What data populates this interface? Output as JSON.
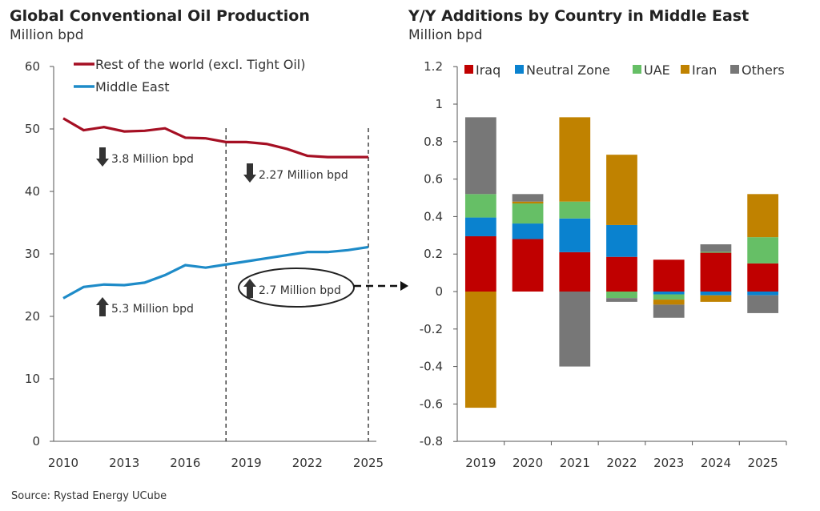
{
  "source": "Source: Rystad Energy UCube",
  "chart_data": [
    {
      "type": "line",
      "title": "Global Conventional Oil Production",
      "subtitle": "Million bpd",
      "ylim": [
        0,
        60
      ],
      "yticks": [
        0,
        10,
        20,
        30,
        40,
        50,
        60
      ],
      "xticks": [
        2010,
        2013,
        2016,
        2019,
        2022,
        2025
      ],
      "x": [
        2010,
        2011,
        2012,
        2013,
        2014,
        2015,
        2016,
        2017,
        2018,
        2019,
        2020,
        2021,
        2022,
        2023,
        2024,
        2025
      ],
      "legend_position": "top-left",
      "series": [
        {
          "name": "Rest of the world (excl. Tight Oil)",
          "color": "#A50F23",
          "values": [
            51.7,
            49.8,
            50.3,
            49.6,
            49.7,
            50.1,
            48.6,
            48.5,
            47.9,
            47.9,
            47.6,
            46.8,
            45.7,
            45.5,
            45.5,
            45.5
          ]
        },
        {
          "name": "Middle East",
          "color": "#1E8BC8",
          "values": [
            22.9,
            24.7,
            25.1,
            25.0,
            25.4,
            26.6,
            28.2,
            27.8,
            28.3,
            28.8,
            29.3,
            29.8,
            30.3,
            30.3,
            30.6,
            31.1
          ]
        }
      ],
      "reference_lines_x": [
        2018,
        2025
      ],
      "annotations": [
        {
          "text": "3.8 Million bpd",
          "direction": "down"
        },
        {
          "text": "2.27 Million bpd",
          "direction": "down"
        },
        {
          "text": "5.3 Million bpd",
          "direction": "up"
        },
        {
          "text": "2.7 Million bpd",
          "direction": "up",
          "circled": true
        }
      ]
    },
    {
      "type": "bar",
      "stacked": true,
      "title": "Y/Y Additions by Country in Middle East",
      "subtitle": "Million bpd",
      "ylim": [
        -0.8,
        1.2
      ],
      "yticks": [
        -0.8,
        -0.6,
        -0.4,
        -0.2,
        0,
        0.2,
        0.4,
        0.6,
        0.8,
        1,
        1.2
      ],
      "ytick_labels": [
        "-0.8",
        "-0.6",
        "-0.4",
        "-0.2",
        "0",
        "0.2",
        "0.4",
        "0.6",
        "0.8",
        "1",
        "1.2"
      ],
      "categories": [
        "2019",
        "2020",
        "2021",
        "2022",
        "2023",
        "2024",
        "2025"
      ],
      "legend_position": "top",
      "series": [
        {
          "name": "Iraq",
          "color": "#C00000",
          "values": [
            0.295,
            0.28,
            0.21,
            0.185,
            0.17,
            0.207,
            0.15
          ]
        },
        {
          "name": "Neutral Zone",
          "color": "#0A82CF",
          "values": [
            0.1,
            0.083,
            0.18,
            0.17,
            -0.015,
            -0.02,
            -0.02
          ]
        },
        {
          "name": "UAE",
          "color": "#66BF66",
          "values": [
            0.125,
            0.107,
            0.09,
            -0.035,
            -0.028,
            0.005,
            0.14
          ]
        },
        {
          "name": "Iran",
          "color": "#C08200",
          "values": [
            -0.62,
            0.01,
            0.45,
            0.375,
            -0.027,
            -0.035,
            0.23
          ]
        },
        {
          "name": "Others",
          "color": "#777777",
          "values": [
            0.41,
            0.04,
            -0.4,
            -0.02,
            -0.07,
            0.04,
            -0.095
          ]
        }
      ]
    }
  ]
}
